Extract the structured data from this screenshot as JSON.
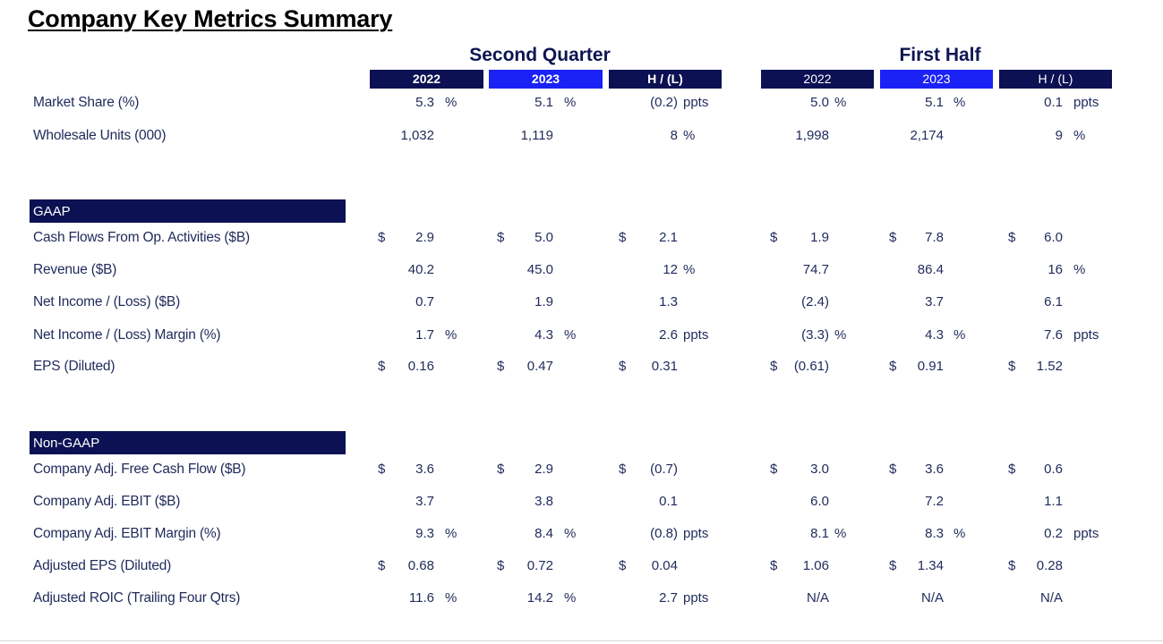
{
  "title": "Company Key Metrics Summary",
  "groups": {
    "q2": "Second Quarter",
    "h1": "First Half"
  },
  "year_headers": [
    "2022",
    "2023",
    "H / (L)",
    "2022",
    "2023",
    "H / (L)"
  ],
  "sections": {
    "gaap": "GAAP",
    "non_gaap": "Non-GAAP"
  },
  "rows": [
    {
      "label": "Market Share (%)",
      "cells": [
        {
          "cur": "",
          "val": "5.3",
          "unit": "%"
        },
        {
          "cur": "",
          "val": "5.1",
          "unit": "%"
        },
        {
          "cur": "",
          "val": "(0.2)",
          "unit": "ppts"
        },
        {
          "cur": "",
          "val": "5.0",
          "unit": "%"
        },
        {
          "cur": "",
          "val": "5.1",
          "unit": "%"
        },
        {
          "cur": "",
          "val": "0.1",
          "unit": "ppts"
        }
      ]
    },
    {
      "label": "Wholesale Units (000)",
      "cells": [
        {
          "cur": "",
          "val": "1,032",
          "unit": ""
        },
        {
          "cur": "",
          "val": "1,119",
          "unit": ""
        },
        {
          "cur": "",
          "val": "8",
          "unit": "%"
        },
        {
          "cur": "",
          "val": "1,998",
          "unit": ""
        },
        {
          "cur": "",
          "val": "2,174",
          "unit": ""
        },
        {
          "cur": "",
          "val": "9",
          "unit": "%"
        }
      ]
    },
    {
      "label": "Cash Flows From Op. Activities ($B)",
      "cells": [
        {
          "cur": "$",
          "val": "2.9",
          "unit": ""
        },
        {
          "cur": "$",
          "val": "5.0",
          "unit": ""
        },
        {
          "cur": "$",
          "val": "2.1",
          "unit": ""
        },
        {
          "cur": "$",
          "val": "1.9",
          "unit": ""
        },
        {
          "cur": "$",
          "val": "7.8",
          "unit": ""
        },
        {
          "cur": "$",
          "val": "6.0",
          "unit": ""
        }
      ]
    },
    {
      "label": "Revenue ($B)",
      "cells": [
        {
          "cur": "",
          "val": "40.2",
          "unit": ""
        },
        {
          "cur": "",
          "val": "45.0",
          "unit": ""
        },
        {
          "cur": "",
          "val": "12",
          "unit": "%"
        },
        {
          "cur": "",
          "val": "74.7",
          "unit": ""
        },
        {
          "cur": "",
          "val": "86.4",
          "unit": ""
        },
        {
          "cur": "",
          "val": "16",
          "unit": "%"
        }
      ]
    },
    {
      "label": "Net Income / (Loss) ($B)",
      "cells": [
        {
          "cur": "",
          "val": "0.7",
          "unit": ""
        },
        {
          "cur": "",
          "val": "1.9",
          "unit": ""
        },
        {
          "cur": "",
          "val": "1.3",
          "unit": ""
        },
        {
          "cur": "",
          "val": "(2.4)",
          "unit": ""
        },
        {
          "cur": "",
          "val": "3.7",
          "unit": ""
        },
        {
          "cur": "",
          "val": "6.1",
          "unit": ""
        }
      ]
    },
    {
      "label": "Net Income / (Loss) Margin (%)",
      "cells": [
        {
          "cur": "",
          "val": "1.7",
          "unit": "%"
        },
        {
          "cur": "",
          "val": "4.3",
          "unit": "%"
        },
        {
          "cur": "",
          "val": "2.6",
          "unit": "ppts"
        },
        {
          "cur": "",
          "val": "(3.3)",
          "unit": "%"
        },
        {
          "cur": "",
          "val": "4.3",
          "unit": "%"
        },
        {
          "cur": "",
          "val": "7.6",
          "unit": "ppts"
        }
      ]
    },
    {
      "label": "EPS (Diluted)",
      "cells": [
        {
          "cur": "$",
          "val": "0.16",
          "unit": ""
        },
        {
          "cur": "$",
          "val": "0.47",
          "unit": ""
        },
        {
          "cur": "$",
          "val": "0.31",
          "unit": ""
        },
        {
          "cur": "$",
          "val": "(0.61)",
          "unit": ""
        },
        {
          "cur": "$",
          "val": "0.91",
          "unit": ""
        },
        {
          "cur": "$",
          "val": "1.52",
          "unit": ""
        }
      ]
    },
    {
      "label": "Company Adj. Free Cash Flow ($B)",
      "cells": [
        {
          "cur": "$",
          "val": "3.6",
          "unit": ""
        },
        {
          "cur": "$",
          "val": "2.9",
          "unit": ""
        },
        {
          "cur": "$",
          "val": "(0.7)",
          "unit": ""
        },
        {
          "cur": "$",
          "val": "3.0",
          "unit": ""
        },
        {
          "cur": "$",
          "val": "3.6",
          "unit": ""
        },
        {
          "cur": "$",
          "val": "0.6",
          "unit": ""
        }
      ]
    },
    {
      "label": "Company Adj. EBIT ($B)",
      "cells": [
        {
          "cur": "",
          "val": "3.7",
          "unit": ""
        },
        {
          "cur": "",
          "val": "3.8",
          "unit": ""
        },
        {
          "cur": "",
          "val": "0.1",
          "unit": ""
        },
        {
          "cur": "",
          "val": "6.0",
          "unit": ""
        },
        {
          "cur": "",
          "val": "7.2",
          "unit": ""
        },
        {
          "cur": "",
          "val": "1.1",
          "unit": ""
        }
      ]
    },
    {
      "label": "Company Adj. EBIT Margin (%)",
      "cells": [
        {
          "cur": "",
          "val": "9.3",
          "unit": "%"
        },
        {
          "cur": "",
          "val": "8.4",
          "unit": "%"
        },
        {
          "cur": "",
          "val": "(0.8)",
          "unit": "ppts"
        },
        {
          "cur": "",
          "val": "8.1",
          "unit": "%"
        },
        {
          "cur": "",
          "val": "8.3",
          "unit": "%"
        },
        {
          "cur": "",
          "val": "0.2",
          "unit": "ppts"
        }
      ]
    },
    {
      "label": "Adjusted EPS (Diluted)",
      "cells": [
        {
          "cur": "$",
          "val": "0.68",
          "unit": ""
        },
        {
          "cur": "$",
          "val": "0.72",
          "unit": ""
        },
        {
          "cur": "$",
          "val": "0.04",
          "unit": ""
        },
        {
          "cur": "$",
          "val": "1.06",
          "unit": ""
        },
        {
          "cur": "$",
          "val": "1.34",
          "unit": ""
        },
        {
          "cur": "$",
          "val": "0.28",
          "unit": ""
        }
      ]
    },
    {
      "label": "Adjusted ROIC (Trailing Four Qtrs)",
      "cells": [
        {
          "cur": "",
          "val": "11.6",
          "unit": "%"
        },
        {
          "cur": "",
          "val": "14.2",
          "unit": "%"
        },
        {
          "cur": "",
          "val": "2.7",
          "unit": "ppts"
        },
        {
          "cur": "",
          "val": "N/A",
          "unit": ""
        },
        {
          "cur": "",
          "val": "N/A",
          "unit": ""
        },
        {
          "cur": "",
          "val": "N/A",
          "unit": ""
        }
      ]
    }
  ]
}
